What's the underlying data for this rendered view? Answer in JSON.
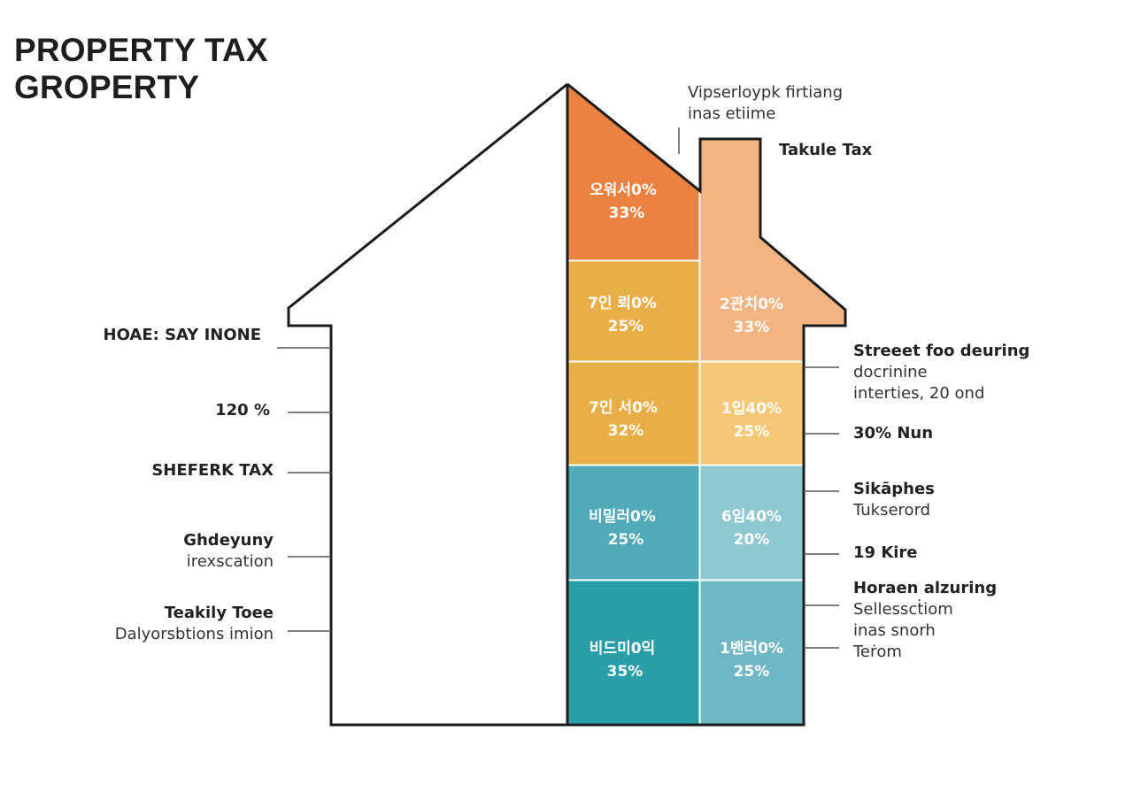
{
  "title": {
    "line1": "PROPERTY TAX",
    "line2": "GROPERTY"
  },
  "palette": {
    "orange": "#ec8241",
    "orange_light": "#f3b482",
    "amber": "#e8ae48",
    "amber_light": "#f5c878",
    "teal_light": "#52a9b7",
    "teal_pale": "#8fc8d1",
    "teal_dark": "#299ea6",
    "teal_mid": "#6fb7c4",
    "outline": "#1c1c1c",
    "leader": "#555555"
  },
  "segments": [
    {
      "line1": "오워서0%",
      "line2": "33%",
      "color": "#ec8241"
    },
    {
      "line1": "7인 뢰0%",
      "line2": "25%",
      "color": "#e8ae48"
    },
    {
      "line1": "2관치0%",
      "line2": "33%",
      "color": "#f3b482"
    },
    {
      "line1": "7인 서0%",
      "line2": "32%",
      "color": "#e8ae48"
    },
    {
      "line1": "1입40%",
      "line2": "25%",
      "color": "#f5c878"
    },
    {
      "line1": "비밀러0%",
      "line2": "25%",
      "color": "#52a9b7"
    },
    {
      "line1": "6임40%",
      "line2": "20%",
      "color": "#8fc8d1"
    },
    {
      "line1": "비드미0익",
      "line2": "35%",
      "color": "#299ea6"
    },
    {
      "line1": "1밴러0%",
      "line2": "25%",
      "color": "#6fb7c4"
    }
  ],
  "left_labels": [
    {
      "strong": "HOAE: SAY INONE",
      "sub": ""
    },
    {
      "strong": "120 %",
      "sub": ""
    },
    {
      "strong": "SHEFERK TAX",
      "sub": ""
    },
    {
      "strong": "Ghdeyuny",
      "sub": "irexscation"
    },
    {
      "strong": "Teakily Toee",
      "sub": "Dalyorsbtions imion"
    }
  ],
  "top_note": {
    "line1": "Vipserloypk firtiang",
    "line2": "inas etiime"
  },
  "right_labels": [
    {
      "strong": "Takule Tax",
      "sub": ""
    },
    {
      "strong": "Streeet foo deuring",
      "sub": "docrinine",
      "sub2": "interties, 20 ond"
    },
    {
      "strong": "30% Nun",
      "sub": ""
    },
    {
      "strong": "Sikāphes",
      "sub": "Tukserord"
    },
    {
      "strong": "19 Kire",
      "sub": ""
    },
    {
      "strong": "Horaen alzuring",
      "sub": "Sellesscṫiom",
      "sub2": "inas snorh",
      "sub3": "Teṙom"
    }
  ]
}
